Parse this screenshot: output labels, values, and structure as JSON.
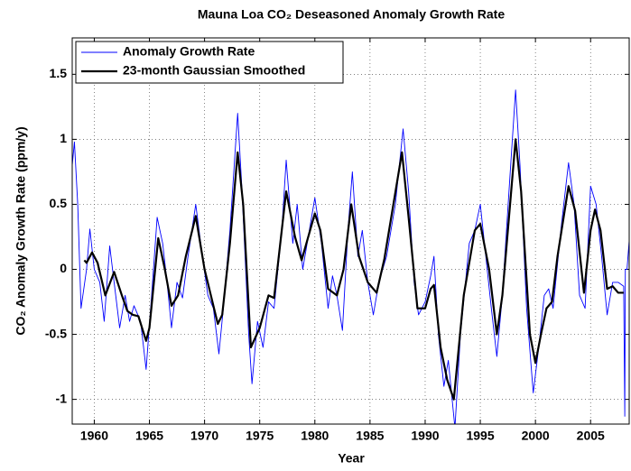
{
  "chart_data": {
    "type": "line",
    "title": "Mauna Loa CO₂ Deseasoned Anomaly Growth Rate",
    "xlabel": "Year",
    "ylabel": "CO₂ Anomaly Growth Rate (ppm/y)",
    "xlim": [
      1958,
      2008.5
    ],
    "ylim": [
      -1.19,
      1.78
    ],
    "xticks": [
      1960,
      1965,
      1970,
      1975,
      1980,
      1985,
      1990,
      1995,
      2000,
      2005
    ],
    "yticks": [
      -1,
      -0.5,
      0,
      0.5,
      1,
      1.5
    ],
    "grid": true,
    "legend": "upper-left",
    "series": [
      {
        "name": "Anomaly Growth Rate",
        "color": "#0000ff",
        "x": [
          1958.0,
          1958.2,
          1958.5,
          1958.8,
          1959.3,
          1959.6,
          1960.0,
          1960.5,
          1960.9,
          1961.4,
          1961.8,
          1962.3,
          1962.8,
          1963.2,
          1963.6,
          1964.2,
          1964.7,
          1965.2,
          1965.7,
          1966.2,
          1966.6,
          1967.0,
          1967.5,
          1968.0,
          1968.5,
          1969.2,
          1969.8,
          1970.3,
          1970.8,
          1971.3,
          1971.7,
          1972.3,
          1973.0,
          1973.4,
          1974.0,
          1974.3,
          1974.8,
          1975.3,
          1975.8,
          1976.3,
          1977.0,
          1977.4,
          1978.0,
          1978.4,
          1978.9,
          1979.5,
          1980.0,
          1980.6,
          1981.2,
          1981.6,
          1982.0,
          1982.5,
          1983.0,
          1983.4,
          1983.9,
          1984.3,
          1984.8,
          1985.3,
          1985.8,
          1986.5,
          1987.3,
          1988.0,
          1988.5,
          1989.0,
          1989.4,
          1990.0,
          1990.5,
          1990.8,
          1991.2,
          1991.7,
          1992.1,
          1992.7,
          1993.2,
          1994.0,
          1994.5,
          1995.0,
          1995.5,
          1996.0,
          1996.5,
          1997.0,
          1997.6,
          1998.2,
          1998.6,
          1999.2,
          1999.8,
          2000.3,
          2000.8,
          2001.2,
          2001.6,
          2002.3,
          2003.0,
          2003.5,
          2004.0,
          2004.5,
          2005.0,
          2005.5,
          2006.0,
          2006.5,
          2007.0,
          2007.5,
          2008.0,
          2008.1,
          2008.15,
          2008.3,
          2008.5
        ],
        "values": [
          0.8,
          0.98,
          0.5,
          -0.3,
          0.0,
          0.31,
          0.0,
          -0.1,
          -0.4,
          0.18,
          -0.1,
          -0.45,
          -0.2,
          -0.4,
          -0.28,
          -0.4,
          -0.77,
          -0.2,
          0.4,
          0.2,
          -0.1,
          -0.45,
          -0.1,
          -0.22,
          0.1,
          0.5,
          0.1,
          -0.2,
          -0.3,
          -0.65,
          -0.3,
          0.3,
          1.2,
          0.6,
          -0.5,
          -0.88,
          -0.4,
          -0.6,
          -0.25,
          -0.3,
          0.3,
          0.84,
          0.2,
          0.5,
          0.0,
          0.3,
          0.55,
          0.2,
          -0.3,
          -0.05,
          -0.2,
          -0.47,
          0.3,
          0.75,
          0.1,
          0.3,
          -0.1,
          -0.35,
          -0.1,
          0.1,
          0.5,
          1.08,
          0.6,
          -0.1,
          -0.35,
          -0.25,
          -0.05,
          0.1,
          -0.5,
          -0.9,
          -0.7,
          -1.22,
          -0.5,
          0.2,
          0.3,
          0.5,
          0.1,
          -0.3,
          -0.67,
          -0.2,
          0.6,
          1.38,
          0.8,
          -0.3,
          -0.95,
          -0.6,
          -0.2,
          -0.15,
          -0.3,
          0.3,
          0.82,
          0.5,
          -0.2,
          -0.3,
          0.64,
          0.5,
          0.1,
          -0.35,
          -0.1,
          -0.1,
          -0.13,
          -1.13,
          0.0,
          0.0,
          0.22
        ]
      },
      {
        "name": "23-month Gaussian Smoothed",
        "color": "#000000",
        "x": [
          1959.1,
          1959.3,
          1959.8,
          1960.3,
          1961.0,
          1961.8,
          1962.5,
          1963.0,
          1963.5,
          1964.0,
          1964.7,
          1965.0,
          1965.8,
          1966.4,
          1967.0,
          1967.6,
          1968.3,
          1969.2,
          1970.0,
          1971.2,
          1971.6,
          1972.3,
          1973.0,
          1973.5,
          1974.2,
          1975.0,
          1975.8,
          1976.3,
          1977.4,
          1978.2,
          1978.8,
          1980.0,
          1980.5,
          1981.2,
          1982.0,
          1982.6,
          1983.3,
          1984.0,
          1984.8,
          1985.6,
          1986.3,
          1987.9,
          1988.5,
          1989.3,
          1990.0,
          1990.5,
          1990.8,
          1991.4,
          1992.0,
          1992.6,
          1993.5,
          1994.5,
          1995.0,
          1995.8,
          1996.5,
          1997.0,
          1998.2,
          1998.7,
          1999.5,
          2000.0,
          2000.5,
          2001.0,
          2001.5,
          2002.0,
          2003.0,
          2003.6,
          2004.4,
          2005.0,
          2005.4,
          2005.9,
          2006.5,
          2007.0,
          2007.5,
          2008.0
        ],
        "values": [
          0.07,
          0.05,
          0.13,
          0.05,
          -0.2,
          -0.02,
          -0.2,
          -0.32,
          -0.35,
          -0.36,
          -0.55,
          -0.45,
          0.24,
          0.0,
          -0.28,
          -0.2,
          0.1,
          0.41,
          0.0,
          -0.42,
          -0.35,
          0.2,
          0.9,
          0.5,
          -0.6,
          -0.45,
          -0.2,
          -0.22,
          0.6,
          0.25,
          0.07,
          0.43,
          0.3,
          -0.15,
          -0.2,
          0.0,
          0.5,
          0.1,
          -0.1,
          -0.18,
          0.08,
          0.9,
          0.4,
          -0.3,
          -0.3,
          -0.15,
          -0.12,
          -0.6,
          -0.85,
          -1.0,
          -0.2,
          0.3,
          0.35,
          0.0,
          -0.5,
          -0.2,
          1.0,
          0.6,
          -0.5,
          -0.72,
          -0.5,
          -0.3,
          -0.25,
          0.1,
          0.64,
          0.45,
          -0.18,
          0.3,
          0.46,
          0.3,
          -0.15,
          -0.13,
          -0.18,
          -0.18
        ]
      }
    ]
  }
}
